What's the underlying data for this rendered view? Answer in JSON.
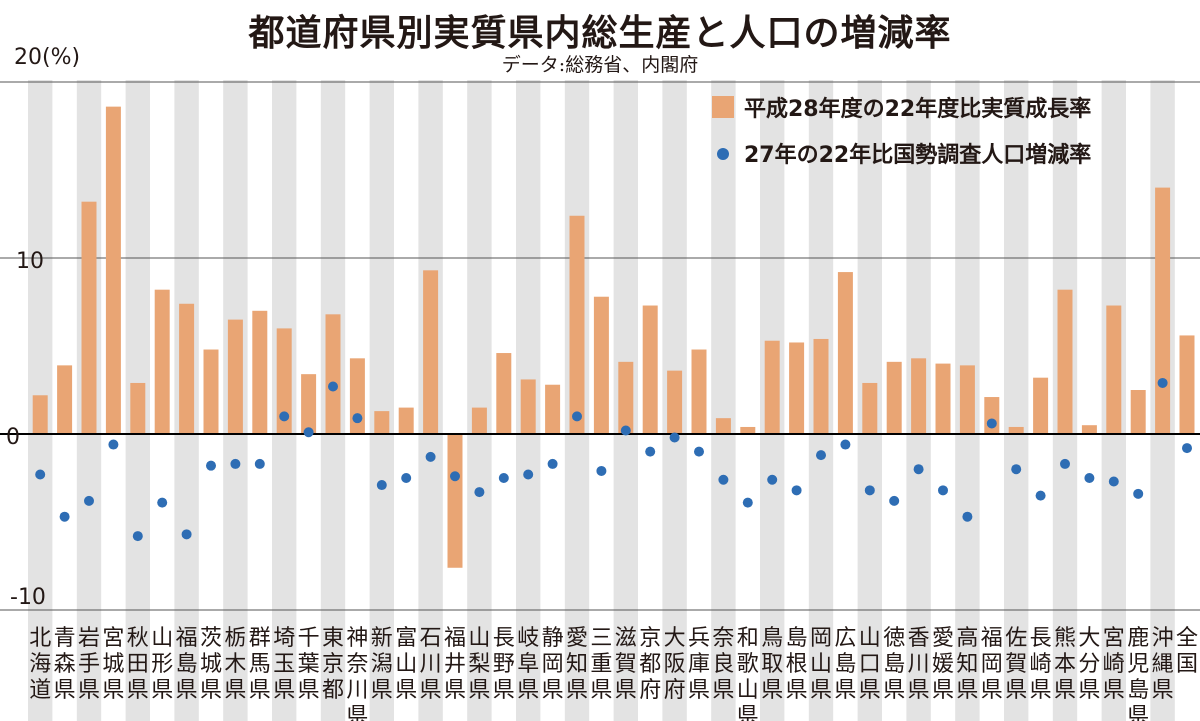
{
  "title": "都道府県別実質県内総生産と人口の増減率",
  "source": "データ:総務省、内閣府",
  "unit_label": "20(%)",
  "colors": {
    "bar": "#E9A574",
    "dot": "#2E6DB4",
    "stripe": "#E3E3E3",
    "grid": "#555555",
    "axis": "#000000"
  },
  "chart_data": {
    "type": "bar",
    "title": "都道府県別実質県内総生産と人口の増減率",
    "ylim": [
      -10,
      20
    ],
    "yticks": [
      {
        "value": 20,
        "label": "20(%)"
      },
      {
        "value": 10,
        "label": "10"
      },
      {
        "value": 0,
        "label": "0"
      },
      {
        "value": -10,
        "label": "-10"
      }
    ],
    "grid": true,
    "legend_position": "top-right",
    "categories": [
      "北海道",
      "青森県",
      "岩手県",
      "宮城県",
      "秋田県",
      "山形県",
      "福島県",
      "茨城県",
      "栃木県",
      "群馬県",
      "埼玉県",
      "千葉県",
      "東京都",
      "神奈川県",
      "新潟県",
      "富山県",
      "石川県",
      "福井県",
      "山梨県",
      "長野県",
      "岐阜県",
      "静岡県",
      "愛知県",
      "三重県",
      "滋賀県",
      "京都府",
      "大阪府",
      "兵庫県",
      "奈良県",
      "和歌山県",
      "鳥取県",
      "島根県",
      "岡山県",
      "広島県",
      "山口県",
      "徳島県",
      "香川県",
      "愛媛県",
      "高知県",
      "福岡県",
      "佐賀県",
      "長崎県",
      "熊本県",
      "大分県",
      "宮崎県",
      "鹿児島県",
      "沖縄県",
      "全国"
    ],
    "series": [
      {
        "name": "平成28年度の22年度比実質成長率",
        "kind": "bar",
        "values": [
          2.2,
          3.9,
          13.2,
          18.6,
          2.9,
          8.2,
          7.4,
          4.8,
          6.5,
          7.0,
          6.0,
          3.4,
          6.8,
          4.3,
          1.3,
          1.5,
          9.3,
          -7.6,
          1.5,
          4.6,
          3.1,
          2.8,
          12.4,
          7.8,
          4.1,
          7.3,
          3.6,
          4.8,
          0.9,
          0.4,
          5.3,
          5.2,
          5.4,
          9.2,
          2.9,
          4.1,
          4.3,
          4.0,
          3.9,
          2.1,
          0.4,
          3.2,
          8.2,
          0.5,
          7.3,
          2.5,
          14.0,
          5.6
        ]
      },
      {
        "name": "27年の22年比国勢調査人口増減率",
        "kind": "dot",
        "values": [
          -2.3,
          -4.7,
          -3.8,
          -0.6,
          -5.8,
          -3.9,
          -5.7,
          -1.8,
          -1.7,
          -1.7,
          1.0,
          0.1,
          2.7,
          0.9,
          -2.9,
          -2.5,
          -1.3,
          -2.4,
          -3.3,
          -2.5,
          -2.3,
          -1.7,
          1.0,
          -2.1,
          0.2,
          -1.0,
          -0.2,
          -1.0,
          -2.6,
          -3.9,
          -2.6,
          -3.2,
          -1.2,
          -0.6,
          -3.2,
          -3.8,
          -2.0,
          -3.2,
          -4.7,
          0.6,
          -2.0,
          -3.5,
          -1.7,
          -2.5,
          -2.7,
          -3.4,
          2.9,
          -0.8
        ]
      }
    ]
  }
}
